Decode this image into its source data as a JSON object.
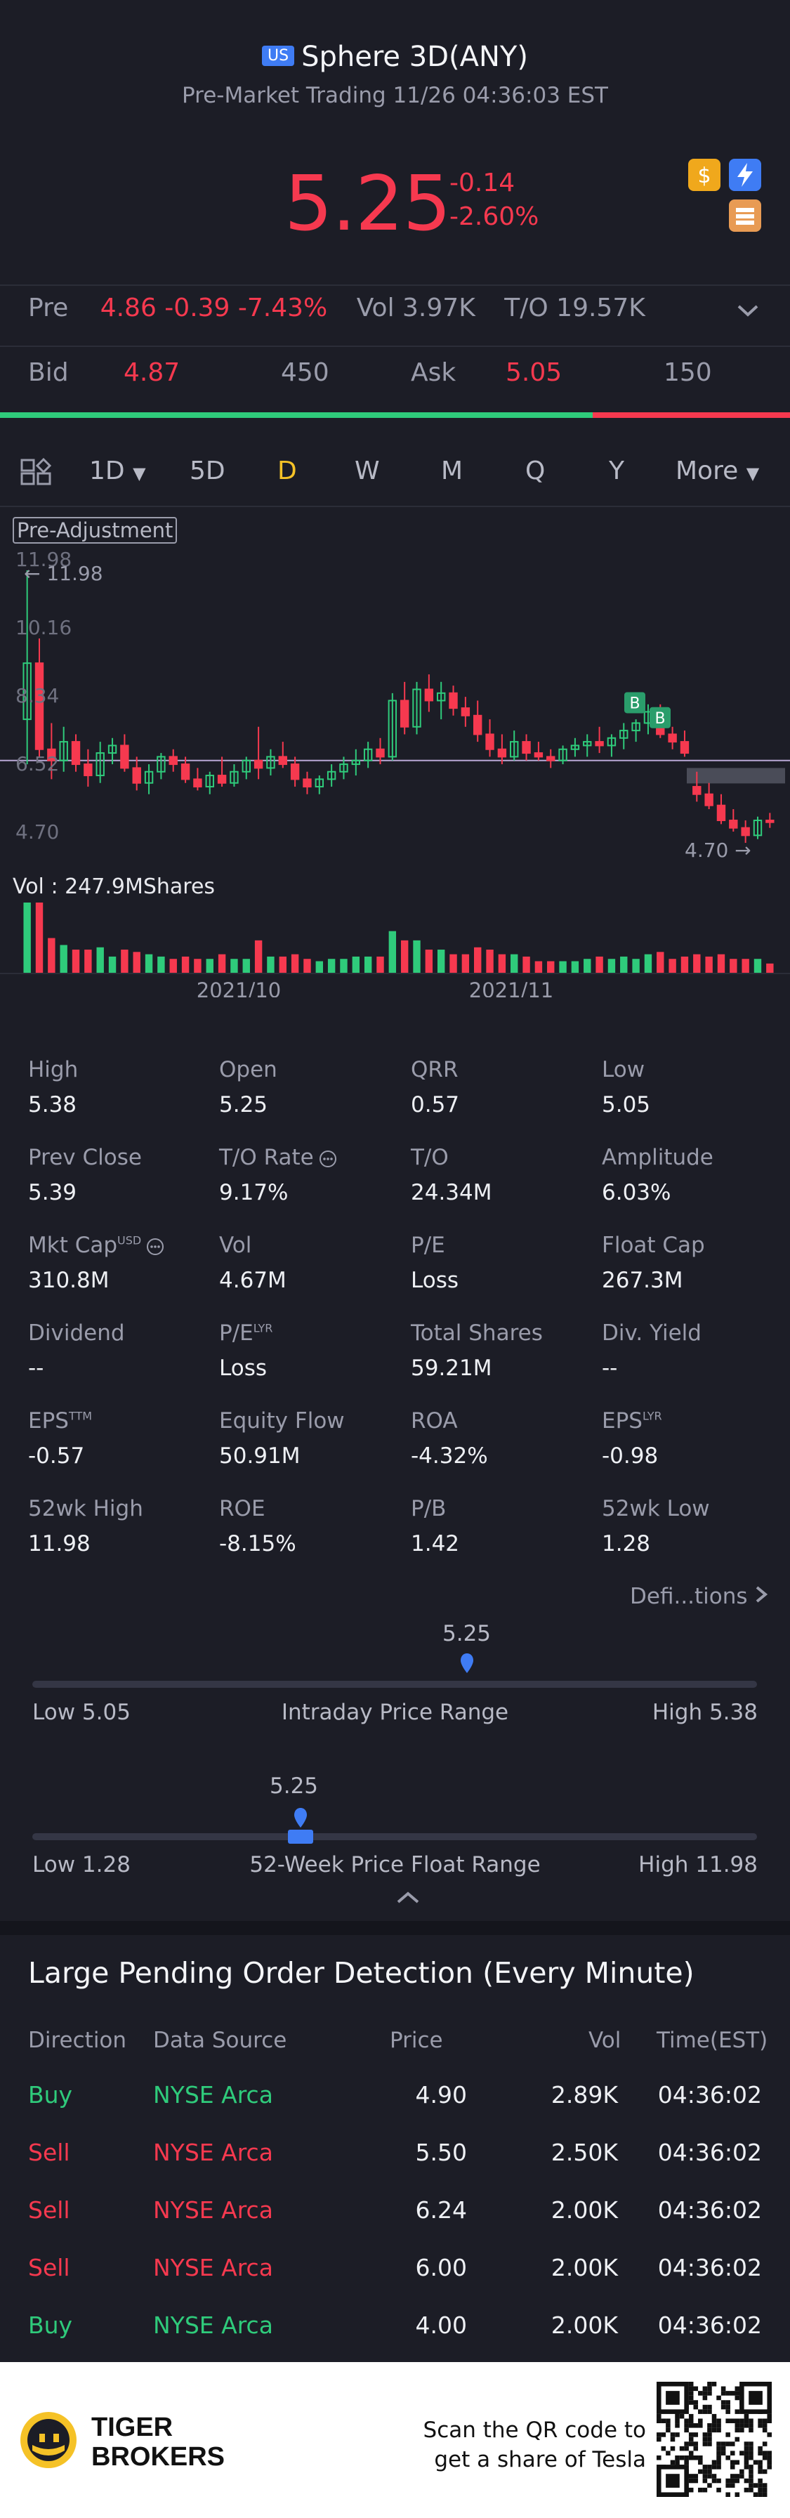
{
  "header": {
    "market_badge": "US",
    "title": "Sphere 3D(ANY)",
    "subtitle": "Pre-Market Trading 11/26 04:36:03 EST",
    "price": "5.25",
    "change": "-0.14",
    "change_pct": "-2.60%",
    "pre_label": "Pre",
    "pre_price": "4.86",
    "pre_change": "-0.39",
    "pre_change_pct": "-7.43%",
    "vol_label": "Vol",
    "vol_value": "3.97K",
    "to_label": "T/O",
    "to_value": "19.57K",
    "bid_label": "Bid",
    "bid_price": "4.87",
    "bid_size": "450",
    "ask_label": "Ask",
    "ask_price": "5.05",
    "ask_size": "150",
    "bid_share": 0.75,
    "icons": [
      "dollar-icon",
      "lightning-icon",
      "stack-icon"
    ]
  },
  "tabs": [
    "1D",
    "5D",
    "D",
    "W",
    "M",
    "Q",
    "Y",
    "More"
  ],
  "active_tab": "D",
  "chart": {
    "adjust_label": "Pre-Adjustment",
    "y_ticks": [
      "11.98",
      "10.16",
      "8.34",
      "6.52",
      "4.70"
    ],
    "high_marker": "11.98",
    "low_marker": "4.70",
    "vol_label": "Vol",
    "vol_value": ": 247.9MShares",
    "x_ticks": [
      "2021/10",
      "2021/11"
    ],
    "buy_markers": [
      "B",
      "B"
    ]
  },
  "chart_data": {
    "type": "candlestick",
    "ylim": [
      4.7,
      11.98
    ],
    "x_ticks": [
      "2021/10",
      "2021/11"
    ],
    "candles": [
      [
        8.0,
        11.98,
        6.8,
        9.5
      ],
      [
        9.5,
        10.16,
        7.0,
        7.2
      ],
      [
        7.2,
        7.9,
        6.4,
        6.9
      ],
      [
        6.9,
        7.8,
        6.6,
        7.4
      ],
      [
        7.4,
        7.6,
        6.6,
        6.8
      ],
      [
        6.8,
        7.2,
        6.2,
        6.5
      ],
      [
        6.5,
        7.4,
        6.3,
        7.1
      ],
      [
        7.1,
        7.5,
        6.8,
        7.3
      ],
      [
        7.3,
        7.6,
        6.6,
        6.7
      ],
      [
        6.7,
        7.0,
        6.1,
        6.3
      ],
      [
        6.3,
        6.8,
        6.0,
        6.6
      ],
      [
        6.6,
        7.1,
        6.4,
        7.0
      ],
      [
        7.0,
        7.2,
        6.6,
        6.8
      ],
      [
        6.8,
        7.0,
        6.3,
        6.4
      ],
      [
        6.4,
        6.7,
        6.1,
        6.2
      ],
      [
        6.2,
        6.6,
        6.0,
        6.5
      ],
      [
        6.5,
        7.0,
        6.2,
        6.3
      ],
      [
        6.3,
        6.8,
        6.2,
        6.6
      ],
      [
        6.6,
        7.0,
        6.4,
        6.9
      ],
      [
        6.9,
        7.8,
        6.4,
        6.7
      ],
      [
        6.7,
        7.2,
        6.5,
        7.0
      ],
      [
        7.0,
        7.4,
        6.7,
        6.8
      ],
      [
        6.8,
        7.0,
        6.2,
        6.4
      ],
      [
        6.4,
        6.6,
        6.0,
        6.2
      ],
      [
        6.2,
        6.5,
        6.0,
        6.4
      ],
      [
        6.4,
        6.8,
        6.2,
        6.6
      ],
      [
        6.6,
        7.0,
        6.4,
        6.8
      ],
      [
        6.8,
        7.2,
        6.5,
        6.9
      ],
      [
        6.9,
        7.4,
        6.7,
        7.2
      ],
      [
        7.2,
        7.5,
        6.8,
        7.0
      ],
      [
        7.0,
        8.7,
        6.9,
        8.5
      ],
      [
        8.5,
        9.0,
        7.6,
        7.8
      ],
      [
        7.8,
        9.0,
        7.6,
        8.8
      ],
      [
        8.8,
        9.2,
        8.2,
        8.5
      ],
      [
        8.5,
        9.0,
        8.0,
        8.7
      ],
      [
        8.7,
        8.9,
        8.1,
        8.3
      ],
      [
        8.3,
        8.6,
        7.8,
        8.1
      ],
      [
        8.1,
        8.5,
        7.4,
        7.6
      ],
      [
        7.6,
        8.0,
        7.0,
        7.2
      ],
      [
        7.2,
        7.6,
        6.8,
        7.0
      ],
      [
        7.0,
        7.7,
        6.9,
        7.4
      ],
      [
        7.4,
        7.6,
        6.9,
        7.1
      ],
      [
        7.1,
        7.4,
        6.9,
        7.0
      ],
      [
        7.0,
        7.2,
        6.7,
        6.9
      ],
      [
        6.9,
        7.3,
        6.8,
        7.2
      ],
      [
        7.2,
        7.5,
        7.0,
        7.3
      ],
      [
        7.3,
        7.6,
        7.0,
        7.4
      ],
      [
        7.4,
        7.8,
        7.1,
        7.3
      ],
      [
        7.3,
        7.6,
        7.0,
        7.5
      ],
      [
        7.5,
        7.9,
        7.2,
        7.7
      ],
      [
        7.7,
        8.0,
        7.4,
        7.9
      ],
      [
        7.9,
        8.4,
        7.6,
        8.2
      ],
      [
        8.2,
        8.4,
        7.5,
        7.6
      ],
      [
        7.6,
        7.8,
        7.2,
        7.4
      ],
      [
        7.4,
        7.7,
        7.0,
        7.1
      ],
      [
        6.2,
        6.6,
        5.8,
        6.0
      ],
      [
        6.0,
        6.3,
        5.6,
        5.7
      ],
      [
        5.7,
        6.0,
        5.2,
        5.3
      ],
      [
        5.3,
        5.6,
        5.0,
        5.1
      ],
      [
        5.1,
        5.3,
        4.7,
        4.9
      ],
      [
        4.9,
        5.4,
        4.8,
        5.3
      ],
      [
        5.3,
        5.5,
        5.1,
        5.25
      ]
    ]
  },
  "stats": [
    {
      "label": "High",
      "value": "5.38"
    },
    {
      "label": "Open",
      "value": "5.25"
    },
    {
      "label": "QRR",
      "value": "0.57"
    },
    {
      "label": "Low",
      "value": "5.05"
    },
    {
      "label": "Prev Close",
      "value": "5.39"
    },
    {
      "label": "T/O Rate",
      "value": "9.17%"
    },
    {
      "label": "T/O",
      "value": "24.34M"
    },
    {
      "label": "Amplitude",
      "value": "6.03%"
    },
    {
      "label": "Mkt Cap",
      "sup": "USD",
      "value": "310.8M"
    },
    {
      "label": "Vol",
      "value": "4.67M"
    },
    {
      "label": "P/E",
      "value": "Loss"
    },
    {
      "label": "Float Cap",
      "value": "267.3M"
    },
    {
      "label": "Dividend",
      "value": "--"
    },
    {
      "label": "P/E",
      "sup": "LYR",
      "value": "Loss"
    },
    {
      "label": "Total Shares",
      "value": "59.21M"
    },
    {
      "label": "Div. Yield",
      "value": "--"
    },
    {
      "label": "EPS",
      "sup": "TTM",
      "value": "-0.57"
    },
    {
      "label": "Equity Flow",
      "value": "50.91M"
    },
    {
      "label": "ROA",
      "value": "-4.32%"
    },
    {
      "label": "EPS",
      "sup": "LYR",
      "value": "-0.98"
    },
    {
      "label": "52wk High",
      "value": "11.98"
    },
    {
      "label": "ROE",
      "value": "-8.15%"
    },
    {
      "label": "P/B",
      "value": "1.42"
    },
    {
      "label": "52wk Low",
      "value": "1.28"
    }
  ],
  "definitions_link": "Defi...tions",
  "intraday": {
    "current": "5.25",
    "low_label": "Low 5.05",
    "title": "Intraday Price Range",
    "high_label": "High 5.38",
    "position": 0.6
  },
  "week52": {
    "current": "5.25",
    "low_label": "Low 1.28",
    "title": "52-Week Price Float Range",
    "high_label": "High 11.98",
    "position": 0.37
  },
  "orders": {
    "title": "Large Pending Order Detection (Every Minute)",
    "headers": [
      "Direction",
      "Data Source",
      "Price",
      "Vol",
      "Time(EST)"
    ],
    "rows": [
      {
        "direction": "Buy",
        "source": "NYSE Arca",
        "price": "4.90",
        "vol": "2.89K",
        "time": "04:36:02"
      },
      {
        "direction": "Sell",
        "source": "NYSE Arca",
        "price": "5.50",
        "vol": "2.50K",
        "time": "04:36:02"
      },
      {
        "direction": "Sell",
        "source": "NYSE Arca",
        "price": "6.24",
        "vol": "2.00K",
        "time": "04:36:02"
      },
      {
        "direction": "Sell",
        "source": "NYSE Arca",
        "price": "6.00",
        "vol": "2.00K",
        "time": "04:36:02"
      },
      {
        "direction": "Buy",
        "source": "NYSE Arca",
        "price": "4.00",
        "vol": "2.00K",
        "time": "04:36:02"
      }
    ]
  },
  "footer": {
    "brand_line1": "TIGER",
    "brand_line2": "BROKERS",
    "scan_line1": "Scan the QR code to",
    "scan_line2": "get a share of Tesla"
  },
  "colors": {
    "up": "#2fcb7b",
    "down": "#f6394f",
    "accent": "#f5c227",
    "blue": "#3f7cf4"
  }
}
